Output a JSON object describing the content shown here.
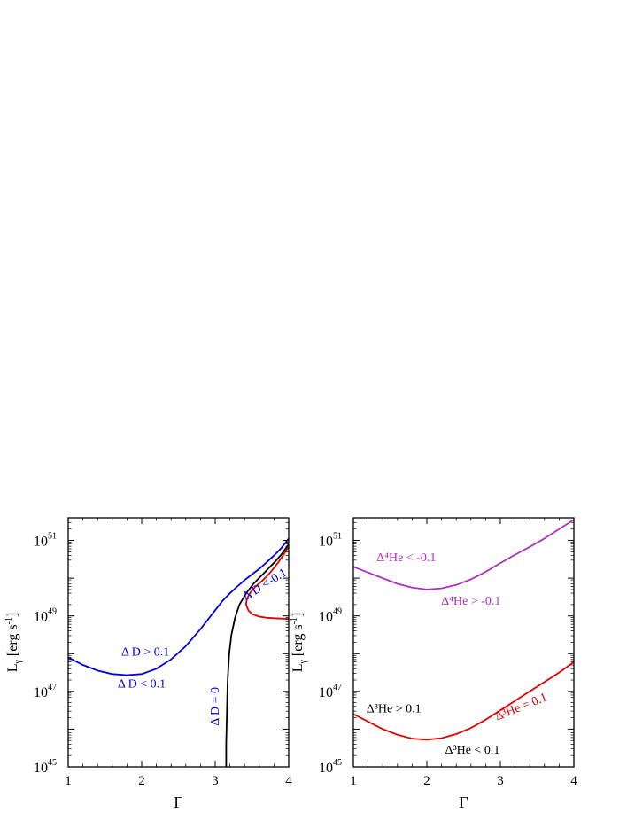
{
  "chart_data": [
    {
      "type": "line",
      "panel": "left",
      "xlabel": "Γ",
      "ylabel": {
        "base": "L",
        "sub": "γ",
        "unit": " [erg s",
        "sup": "-1",
        "close": "]"
      },
      "xlim": [
        1,
        4
      ],
      "ylim_log10": [
        45,
        51.6
      ],
      "yscale": "log",
      "xticks": [
        "1",
        "2",
        "3",
        "4"
      ],
      "yticks": [
        {
          "exp": 45,
          "label": "10",
          "sup": "45"
        },
        {
          "exp": 47,
          "label": "10",
          "sup": "47"
        },
        {
          "exp": 49,
          "label": "10",
          "sup": "49"
        },
        {
          "exp": 51,
          "label": "10",
          "sup": "51"
        }
      ],
      "grid": false,
      "series": [
        {
          "color": "#0000e0",
          "points": [
            [
              1.0,
              47.9
            ],
            [
              1.2,
              47.7
            ],
            [
              1.4,
              47.55
            ],
            [
              1.6,
              47.46
            ],
            [
              1.8,
              47.43
            ],
            [
              2.0,
              47.46
            ],
            [
              2.2,
              47.6
            ],
            [
              2.4,
              47.85
            ],
            [
              2.6,
              48.2
            ],
            [
              2.8,
              48.65
            ],
            [
              3.0,
              49.15
            ],
            [
              3.1,
              49.4
            ],
            [
              3.2,
              49.6
            ],
            [
              3.3,
              49.78
            ],
            [
              3.4,
              49.95
            ],
            [
              3.5,
              50.1
            ],
            [
              3.6,
              50.25
            ],
            [
              3.7,
              50.42
            ],
            [
              3.8,
              50.6
            ],
            [
              3.9,
              50.8
            ],
            [
              4.0,
              51.05
            ]
          ]
        },
        {
          "color": "#000000",
          "points": [
            [
              3.15,
              45.0
            ],
            [
              3.15,
              45.6
            ],
            [
              3.16,
              46.5
            ],
            [
              3.17,
              47.3
            ],
            [
              3.19,
              48.0
            ],
            [
              3.22,
              48.5
            ],
            [
              3.27,
              48.95
            ],
            [
              3.33,
              49.3
            ],
            [
              3.42,
              49.6
            ],
            [
              3.52,
              49.85
            ],
            [
              3.62,
              50.05
            ],
            [
              3.72,
              50.25
            ],
            [
              3.82,
              50.45
            ],
            [
              3.91,
              50.65
            ],
            [
              4.0,
              50.9
            ]
          ]
        },
        {
          "color": "#e00000",
          "points": [
            [
              4.0,
              48.92
            ],
            [
              3.9,
              48.93
            ],
            [
              3.8,
              48.94
            ],
            [
              3.7,
              48.95
            ],
            [
              3.6,
              48.98
            ],
            [
              3.5,
              49.05
            ],
            [
              3.45,
              49.15
            ],
            [
              3.42,
              49.3
            ],
            [
              3.43,
              49.45
            ],
            [
              3.48,
              49.62
            ],
            [
              3.55,
              49.78
            ],
            [
              3.65,
              49.95
            ],
            [
              3.75,
              50.15
            ],
            [
              3.85,
              50.4
            ],
            [
              3.93,
              50.62
            ],
            [
              4.0,
              50.85
            ]
          ]
        }
      ],
      "annotations": [
        {
          "text": "Δ D > 0.1",
          "x": 2.05,
          "y": 47.95,
          "color": "#0000e0",
          "rotate": 0
        },
        {
          "text": "Δ D < 0.1",
          "x": 2.0,
          "y": 47.1,
          "color": "#0000e0",
          "rotate": 0
        },
        {
          "text": "Δ D = 0",
          "x": 3.05,
          "y": 46.6,
          "color": "#0000e0",
          "rotate": -90
        },
        {
          "text": "Δ D <-0.1",
          "x": 3.7,
          "y": 49.75,
          "color": "#0000e0",
          "rotate": -32
        }
      ]
    },
    {
      "type": "line",
      "panel": "right",
      "xlabel": "Γ",
      "ylabel": {
        "base": "L",
        "sub": "γ",
        "unit": " [erg s",
        "sup": "-1",
        "close": "]"
      },
      "xlim": [
        1,
        4
      ],
      "ylim_log10": [
        45,
        51.6
      ],
      "yscale": "log",
      "xticks": [
        "1",
        "2",
        "3",
        "4"
      ],
      "yticks": [
        {
          "exp": 45,
          "label": "10",
          "sup": "45"
        },
        {
          "exp": 47,
          "label": "10",
          "sup": "47"
        },
        {
          "exp": 49,
          "label": "10",
          "sup": "49"
        },
        {
          "exp": 51,
          "label": "10",
          "sup": "51"
        }
      ],
      "grid": false,
      "series": [
        {
          "color": "#b030c0",
          "points": [
            [
              1.0,
              50.3
            ],
            [
              1.2,
              50.15
            ],
            [
              1.4,
              50.0
            ],
            [
              1.6,
              49.85
            ],
            [
              1.8,
              49.75
            ],
            [
              2.0,
              49.7
            ],
            [
              2.2,
              49.73
            ],
            [
              2.4,
              49.82
            ],
            [
              2.6,
              49.97
            ],
            [
              2.8,
              50.17
            ],
            [
              3.0,
              50.4
            ],
            [
              3.2,
              50.62
            ],
            [
              3.4,
              50.83
            ],
            [
              3.6,
              51.05
            ],
            [
              3.8,
              51.3
            ],
            [
              4.0,
              51.55
            ]
          ]
        },
        {
          "color": "#e00000",
          "points": [
            [
              1.0,
              46.4
            ],
            [
              1.2,
              46.2
            ],
            [
              1.4,
              46.0
            ],
            [
              1.6,
              45.85
            ],
            [
              1.8,
              45.75
            ],
            [
              2.0,
              45.72
            ],
            [
              2.2,
              45.76
            ],
            [
              2.4,
              45.87
            ],
            [
              2.6,
              46.03
            ],
            [
              2.8,
              46.25
            ],
            [
              3.0,
              46.5
            ],
            [
              3.2,
              46.75
            ],
            [
              3.4,
              47.0
            ],
            [
              3.6,
              47.25
            ],
            [
              3.8,
              47.5
            ],
            [
              4.0,
              47.78
            ]
          ]
        }
      ],
      "annotations": [
        {
          "text": "Δ⁴He < -0.1",
          "x": 1.72,
          "y": 50.45,
          "color": "#b030c0",
          "rotate": 0
        },
        {
          "text": "Δ⁴He > -0.1",
          "x": 2.6,
          "y": 49.3,
          "color": "#b030c0",
          "rotate": 0
        },
        {
          "text": "Δ³He > 0.1",
          "x": 1.55,
          "y": 46.45,
          "color": "#000000",
          "rotate": 0
        },
        {
          "text": "Δ³He < 0.1",
          "x": 2.62,
          "y": 45.35,
          "color": "#000000",
          "rotate": 0
        },
        {
          "text": "Δ³He = 0.1",
          "x": 3.3,
          "y": 46.5,
          "color": "#e00000",
          "rotate": -22
        }
      ]
    }
  ]
}
